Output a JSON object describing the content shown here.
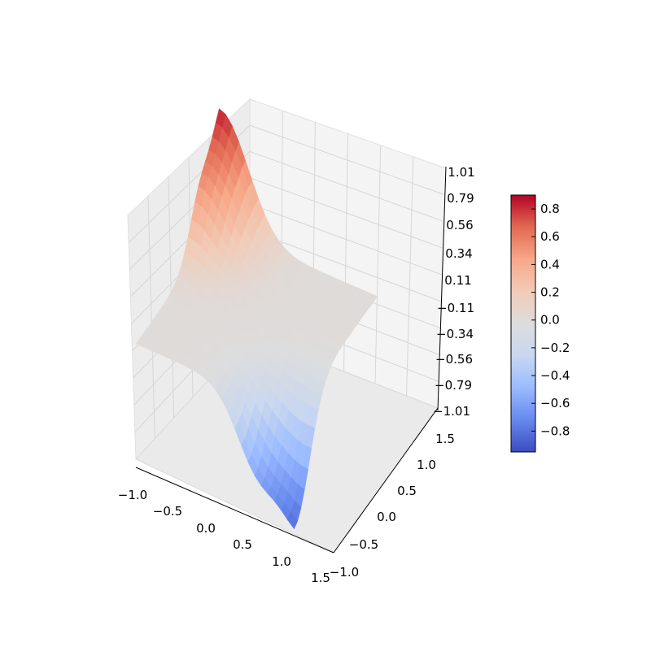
{
  "chart_data": {
    "type": "surface3d",
    "title": "",
    "xlabel": "",
    "ylabel": "",
    "zlabel": "",
    "x_ticks": [
      "−1.0",
      "−0.5",
      "0.0",
      "0.5",
      "1.0",
      "1.5"
    ],
    "y_ticks": [
      "−1.0",
      "−0.5",
      "0.0",
      "0.5",
      "1.0",
      "1.5"
    ],
    "z_ticks": [
      "−1.01",
      "−0.79",
      "−0.56",
      "−0.34",
      "−0.11",
      "0.11",
      "0.34",
      "0.56",
      "0.79",
      "1.01"
    ],
    "xlim": [
      -1.0,
      1.5
    ],
    "ylim": [
      -1.0,
      1.5
    ],
    "zlim": [
      -1.01,
      1.01
    ],
    "surface_extent": {
      "x": [
        -1.0,
        1.0
      ],
      "y": [
        -1.0,
        1.0
      ]
    },
    "peak": {
      "x": -1.0,
      "y": 0.95,
      "z": 0.89
    },
    "trough": {
      "x": 0.9,
      "y": -1.0,
      "z": -0.89
    },
    "colormap": "coolwarm",
    "colormap_stops": [
      "#3b4cc0",
      "#6788ee",
      "#9abbff",
      "#c9d7f0",
      "#dddddd",
      "#f2cbb7",
      "#f7a889",
      "#e26952",
      "#b40426"
    ],
    "colorbar": {
      "range": [
        -0.95,
        0.9
      ],
      "ticks": [
        "0.8",
        "0.6",
        "0.4",
        "0.2",
        "0.0",
        "−0.2",
        "−0.4",
        "−0.6",
        "−0.8"
      ]
    },
    "grid": true,
    "pane_color": "#f2f2f2"
  }
}
